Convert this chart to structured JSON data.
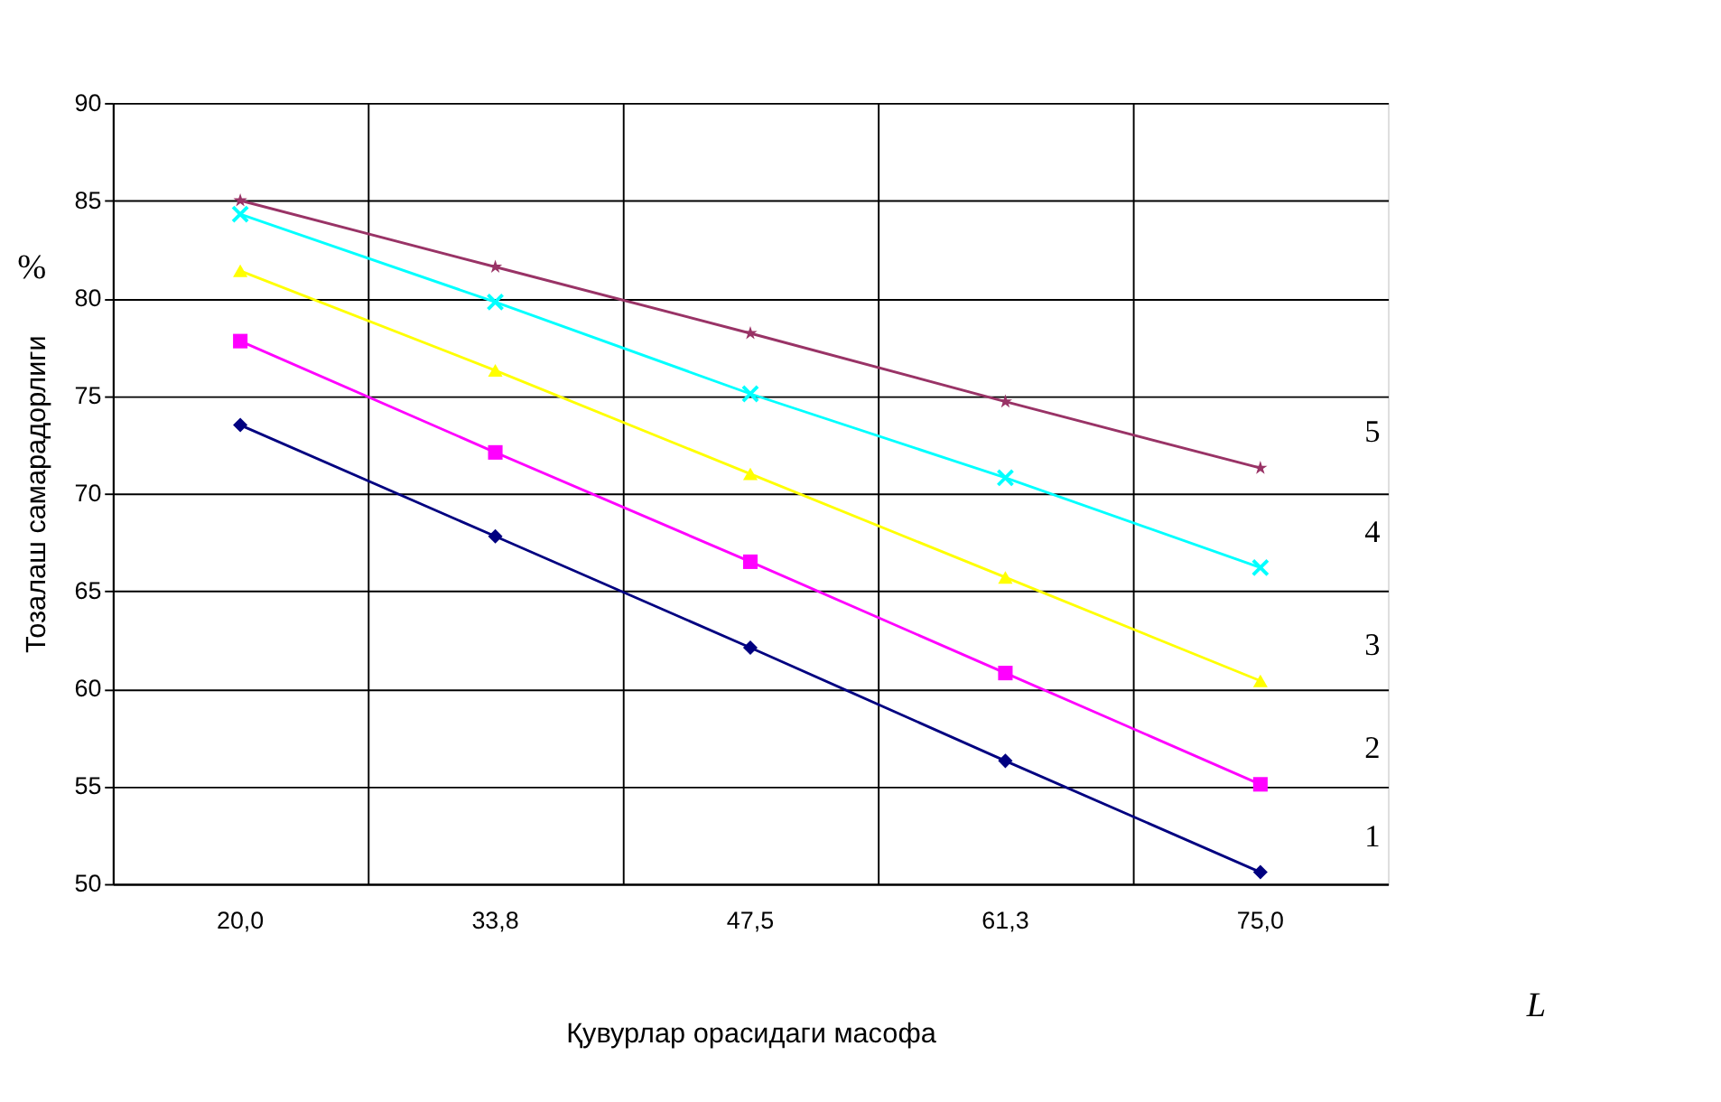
{
  "chart_data": {
    "type": "line",
    "xlabel": "Қувурлар орасидаги масофа",
    "ylabel": "Тозалаш самарадорлиги",
    "categories": [
      "20,0",
      "33,8",
      "47,5",
      "61,3",
      "75,0"
    ],
    "series": [
      {
        "name": "1",
        "color": "#000080",
        "marker": "diamond",
        "values": [
          73.5,
          67.8,
          62.1,
          56.3,
          50.6
        ]
      },
      {
        "name": "2",
        "color": "#ff00ff",
        "marker": "square",
        "values": [
          77.8,
          72.1,
          66.5,
          60.8,
          55.1
        ]
      },
      {
        "name": "3",
        "color": "#ffff00",
        "marker": "triangle",
        "values": [
          81.4,
          76.3,
          71.0,
          65.7,
          60.4
        ]
      },
      {
        "name": "4",
        "color": "#00ffff",
        "marker": "cross",
        "values": [
          84.3,
          79.8,
          75.1,
          70.8,
          66.2
        ]
      },
      {
        "name": "5",
        "color": "#993366",
        "marker": "star",
        "values": [
          85.0,
          81.6,
          78.2,
          74.7,
          71.3
        ]
      }
    ],
    "ylim": [
      50,
      90
    ],
    "yticks": [
      50,
      55,
      60,
      65,
      70,
      75,
      80,
      85,
      90
    ],
    "grid": true,
    "legend": false,
    "line_style": "solid",
    "annotations": [
      "%",
      "L"
    ]
  }
}
